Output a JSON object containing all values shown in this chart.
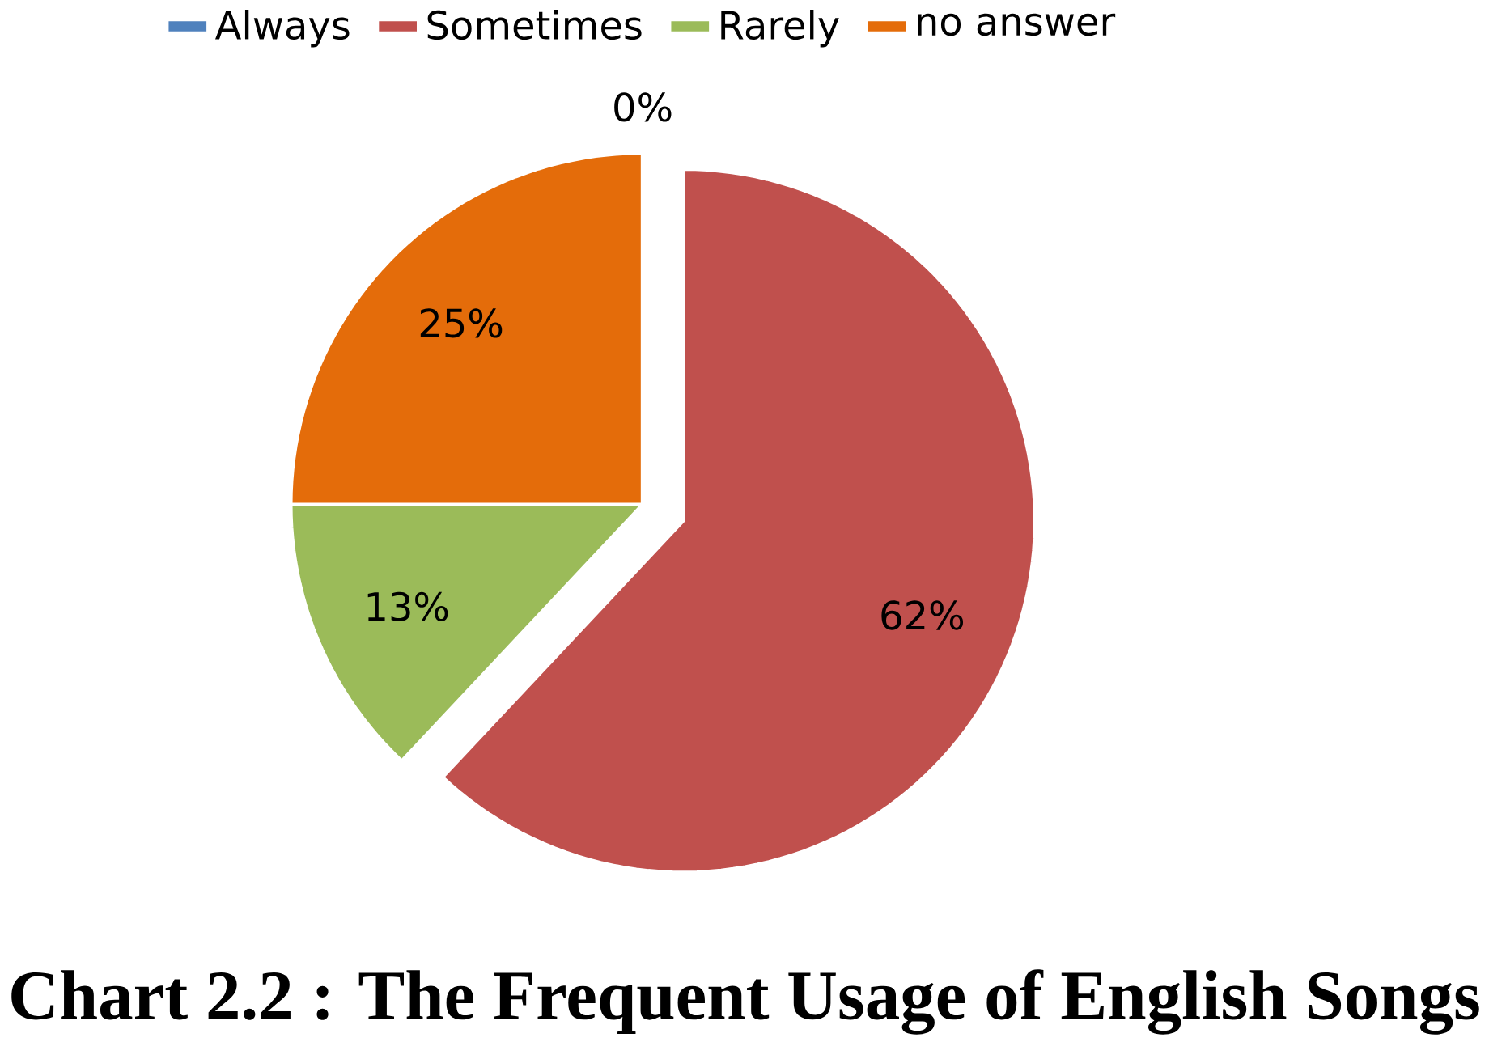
{
  "chart_data": {
    "type": "pie",
    "title": "Chart 2.2 : The Frequent Usage of English Songs",
    "categories": [
      "Always",
      "Sometimes",
      "Rarely",
      "no answer"
    ],
    "values": [
      0,
      62,
      13,
      25
    ],
    "colors": [
      "#4f81bd",
      "#c0504d",
      "#9bbb59",
      "#e46c0a"
    ],
    "value_labels": [
      "0%",
      "62%",
      "13%",
      "25%"
    ],
    "legend": "top"
  }
}
